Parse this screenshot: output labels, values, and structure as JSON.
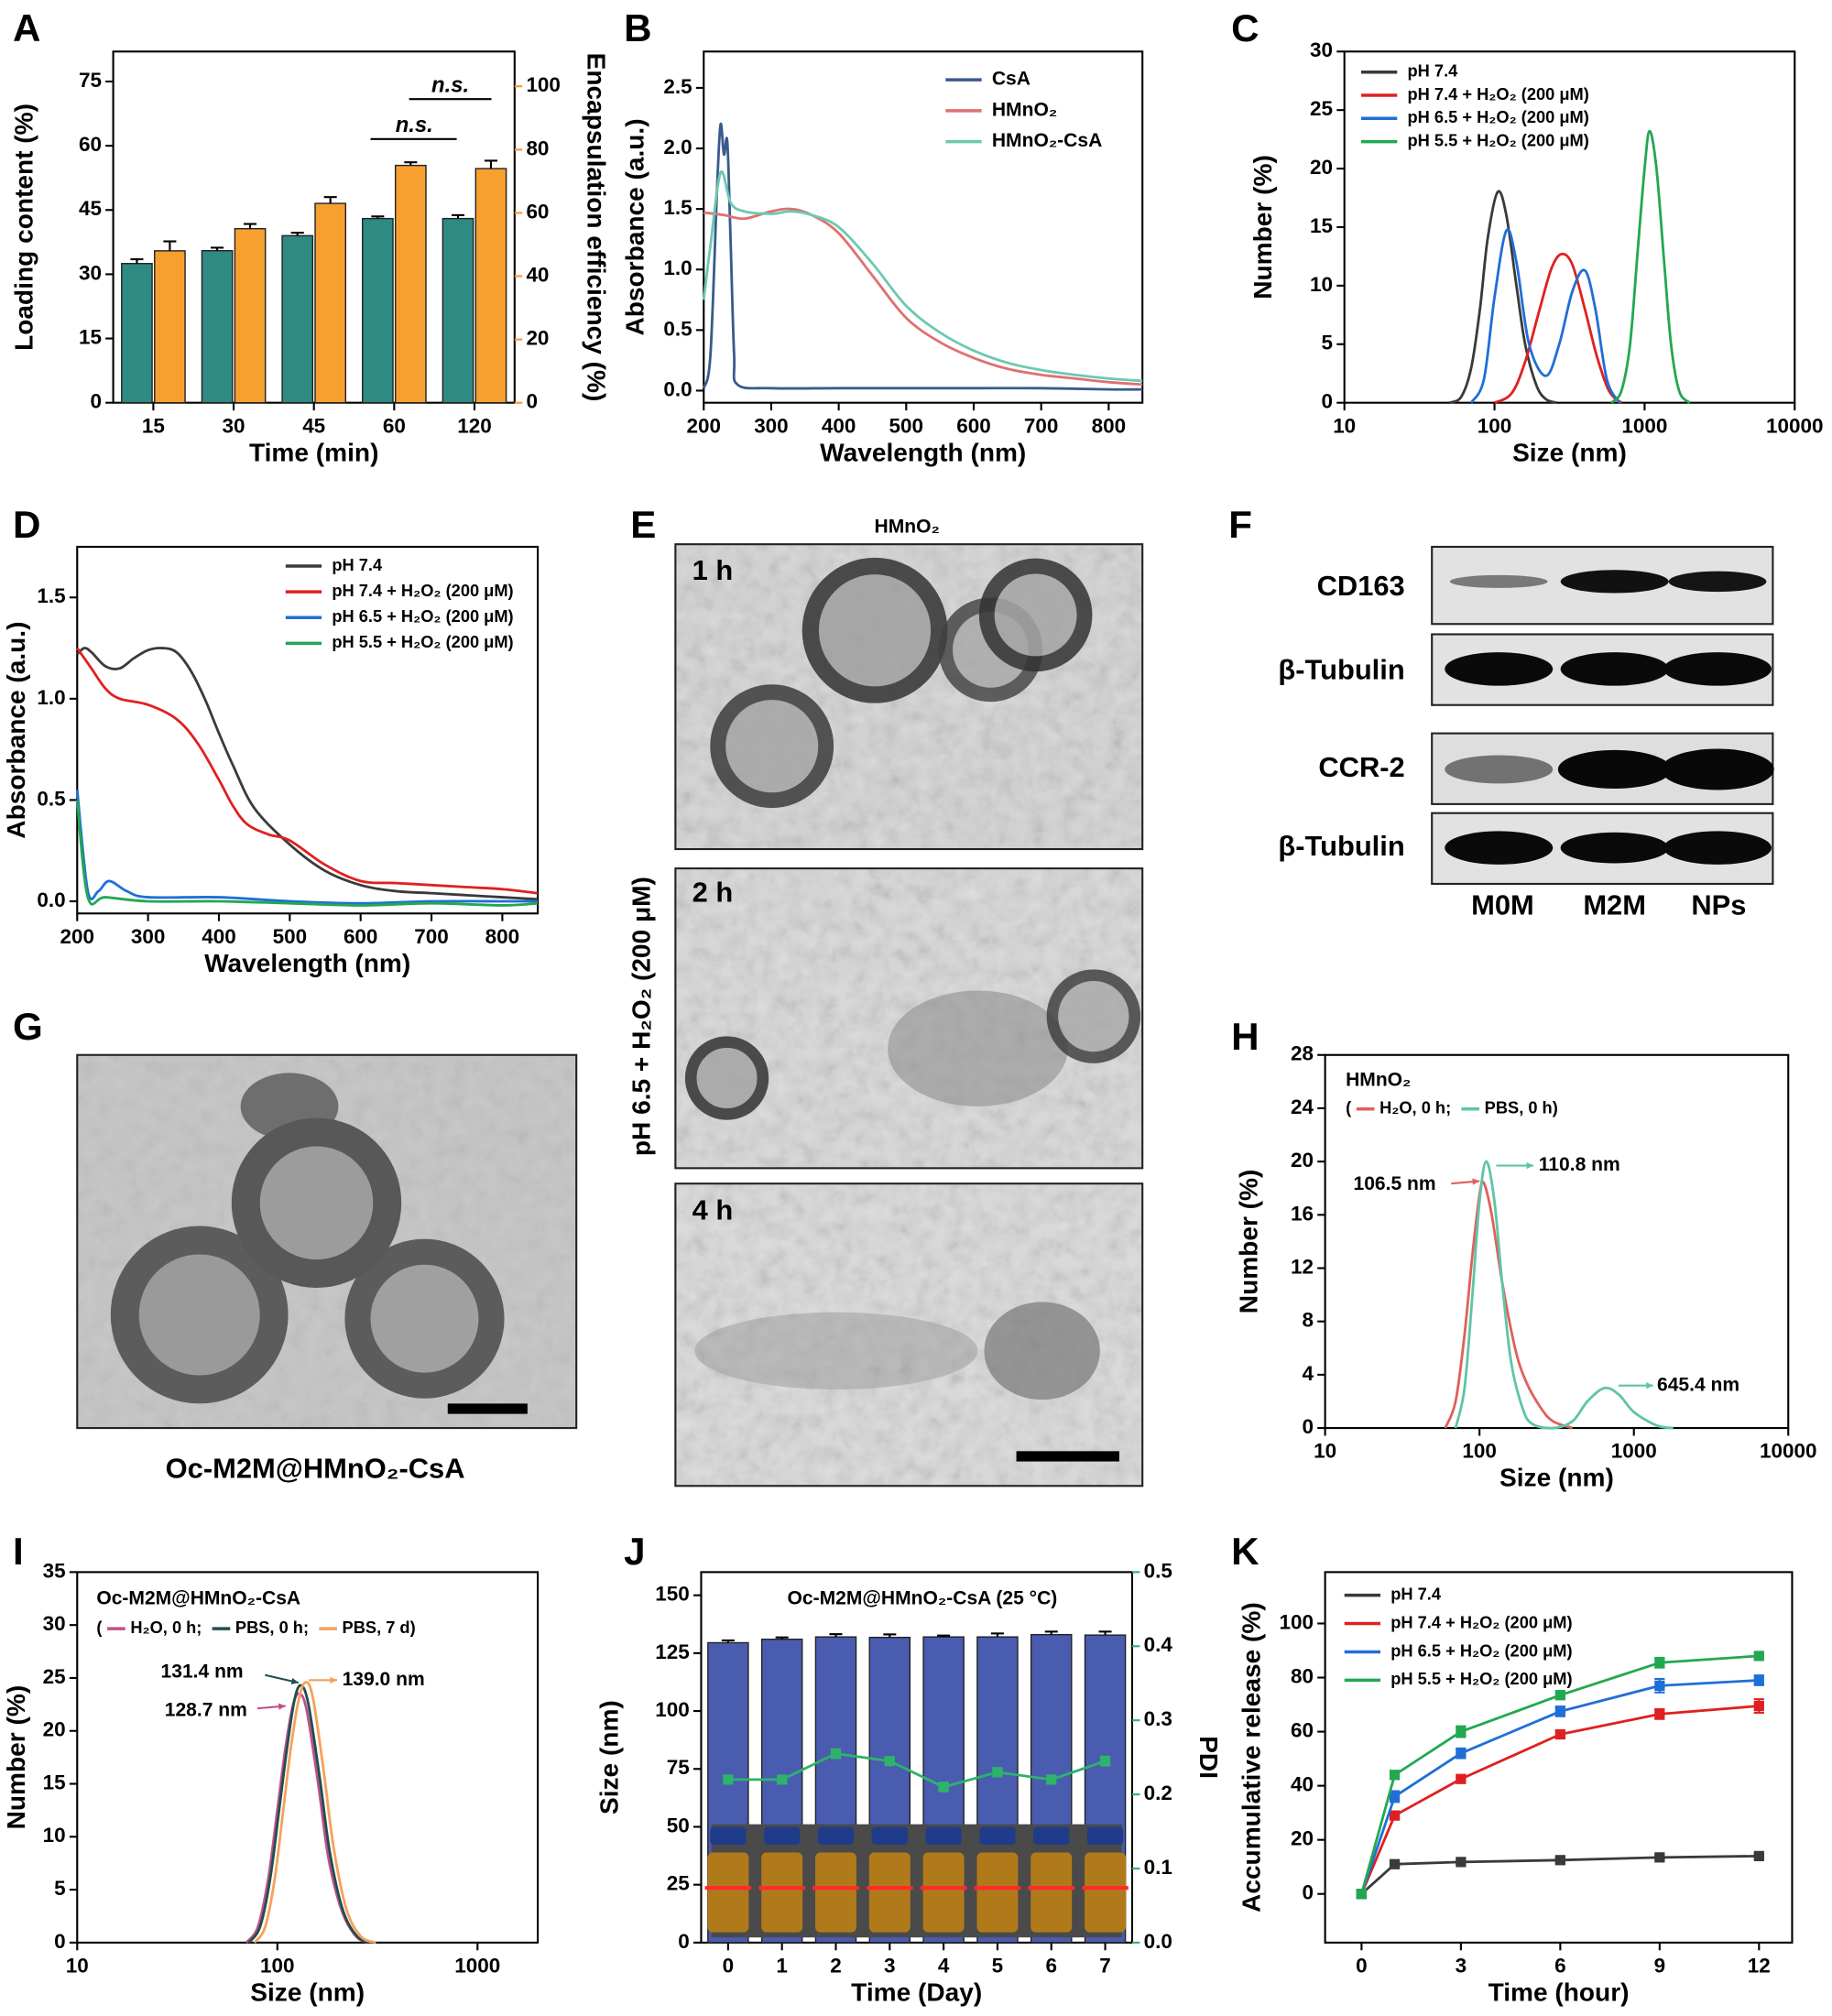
{
  "chart_data": [
    {
      "label": "A",
      "type": "bar",
      "categories": [
        "15",
        "30",
        "45",
        "60",
        "120"
      ],
      "xlabel": "Time (min)",
      "ylabel": "Loading content (%)",
      "y2label": "Encapsulation efficiency (%)",
      "ylabel_color": "#2e9a92",
      "y2label_color": "#f39a2b",
      "ylim": [
        0,
        82
      ],
      "yticks": [
        0,
        15,
        30,
        45,
        60,
        75
      ],
      "y2lim": [
        0,
        111
      ],
      "y2ticks": [
        0,
        20,
        40,
        60,
        80,
        100
      ],
      "series": [
        {
          "color": "#2f8a83",
          "values": [
            32.5,
            35.5,
            39,
            43,
            43
          ],
          "errors": [
            1,
            0.7,
            0.7,
            0.5,
            0.8
          ]
        },
        {
          "color": "#f7a030",
          "axis": "y2",
          "values": [
            48,
            55,
            63,
            75,
            74
          ],
          "errors": [
            3,
            1.5,
            2,
            1,
            2.5
          ]
        }
      ],
      "annotations": [
        {
          "text": "n.s.",
          "color": "#000"
        },
        {
          "text": "n.s.",
          "color": "#000"
        }
      ]
    },
    {
      "label": "B",
      "type": "line",
      "xlabel": "Wavelength (nm)",
      "ylabel": "Absorbance (a.u.)",
      "xlim": [
        200,
        850
      ],
      "xticks": [
        200,
        300,
        400,
        500,
        600,
        700,
        800
      ],
      "ylim": [
        -0.1,
        2.8
      ],
      "yticks": [
        {
          "value": 0,
          "label": "0.0"
        },
        0.5,
        {
          "value": 1,
          "label": "1.0"
        },
        1.5,
        {
          "value": 2,
          "label": "2.0"
        },
        2.5
      ],
      "legend": "upper right",
      "series": [
        {
          "name": "CsA",
          "color": "#3a5a8c",
          "x": [
            200,
            210,
            220,
            225,
            230,
            235,
            240,
            245,
            250,
            300,
            400,
            500,
            600,
            700,
            800,
            850
          ],
          "values": [
            0.02,
            0.3,
            1.7,
            2.2,
            1.95,
            2.05,
            1.2,
            0.3,
            0.05,
            0.02,
            0.02,
            0.02,
            0.02,
            0.02,
            0.01,
            0.01
          ]
        },
        {
          "name": "HMnO₂",
          "color": "#e07070",
          "x": [
            200,
            230,
            260,
            300,
            330,
            360,
            400,
            450,
            500,
            550,
            600,
            650,
            700,
            750,
            800,
            850
          ],
          "values": [
            1.47,
            1.45,
            1.42,
            1.48,
            1.5,
            1.45,
            1.3,
            0.95,
            0.6,
            0.4,
            0.27,
            0.18,
            0.13,
            0.1,
            0.07,
            0.05
          ]
        },
        {
          "name": "HMnO₂-CsA",
          "color": "#6cc9b0",
          "x": [
            200,
            210,
            225,
            240,
            260,
            300,
            330,
            360,
            400,
            450,
            500,
            550,
            600,
            650,
            700,
            750,
            800,
            850
          ],
          "values": [
            0.75,
            1.2,
            1.8,
            1.55,
            1.48,
            1.46,
            1.48,
            1.45,
            1.35,
            1.05,
            0.7,
            0.48,
            0.33,
            0.23,
            0.17,
            0.13,
            0.1,
            0.08
          ]
        }
      ]
    },
    {
      "label": "C",
      "type": "line",
      "xlabel": "Size (nm)",
      "ylabel": "Number (%)",
      "xlog": true,
      "xlim": [
        10,
        10000
      ],
      "xticks": [
        10,
        100,
        1000,
        10000
      ],
      "ylim": [
        0,
        30
      ],
      "yticks": [
        0,
        5,
        10,
        15,
        20,
        25,
        30
      ],
      "legend": "upper left",
      "series": [
        {
          "name": "pH 7.4",
          "color": "#3a3a3a",
          "x": [
            50,
            60,
            70,
            80,
            90,
            105,
            120,
            140,
            160,
            190,
            220,
            260
          ],
          "values": [
            0,
            0.5,
            3,
            8,
            14,
            18,
            16,
            10,
            5,
            1.5,
            0.3,
            0
          ]
        },
        {
          "name": "pH 7.4 + H₂O₂ (200 μM)",
          "color": "#e02020",
          "x": [
            100,
            130,
            160,
            200,
            240,
            280,
            330,
            400,
            480,
            580,
            700
          ],
          "values": [
            0,
            0.8,
            3.5,
            8,
            11.5,
            12.7,
            11.8,
            8,
            4,
            1,
            0
          ]
        },
        {
          "name": "pH 6.5 + H₂O₂ (200 μM)",
          "color": "#1f6fd6",
          "x": [
            70,
            85,
            100,
            120,
            140,
            170,
            220,
            270,
            330,
            400,
            470,
            560,
            680
          ],
          "values": [
            0,
            2,
            9,
            14.7,
            12,
            5,
            2.3,
            5,
            9.5,
            11.3,
            8,
            2,
            0
          ]
        },
        {
          "name": "pH 5.5 + H₂O₂ (200 μM)",
          "color": "#22a850",
          "x": [
            600,
            700,
            800,
            900,
            1000,
            1080,
            1200,
            1350,
            1500,
            1700,
            2000
          ],
          "values": [
            0,
            1,
            5,
            13,
            20,
            23.2,
            20,
            12,
            5,
            1,
            0
          ]
        }
      ]
    },
    {
      "label": "D",
      "type": "line",
      "xlabel": "Wavelength (nm)",
      "ylabel": "Absorbance (a.u.)",
      "xlim": [
        200,
        850
      ],
      "xticks": [
        200,
        300,
        400,
        500,
        600,
        700,
        800
      ],
      "ylim": [
        -0.06,
        1.75
      ],
      "yticks": [
        {
          "value": 0,
          "label": "0.0"
        },
        0.5,
        {
          "value": 1,
          "label": "1.0"
        },
        1.5
      ],
      "legend": "upper left",
      "series": [
        {
          "name": "pH 7.4",
          "color": "#3a3a3a",
          "x": [
            200,
            210,
            220,
            240,
            260,
            280,
            300,
            320,
            340,
            360,
            380,
            400,
            420,
            450,
            500,
            550,
            600,
            650,
            700,
            750,
            800,
            850
          ],
          "values": [
            1.22,
            1.25,
            1.23,
            1.16,
            1.15,
            1.2,
            1.24,
            1.25,
            1.23,
            1.14,
            1.0,
            0.83,
            0.67,
            0.46,
            0.28,
            0.15,
            0.08,
            0.05,
            0.04,
            0.03,
            0.02,
            0.01
          ]
        },
        {
          "name": "pH 7.4 + H₂O₂ (200 μM)",
          "color": "#e02020",
          "x": [
            200,
            220,
            240,
            260,
            300,
            340,
            370,
            400,
            420,
            440,
            470,
            500,
            550,
            600,
            650,
            700,
            750,
            800,
            850
          ],
          "values": [
            1.25,
            1.15,
            1.05,
            1.0,
            0.97,
            0.9,
            0.78,
            0.6,
            0.47,
            0.38,
            0.33,
            0.3,
            0.18,
            0.1,
            0.09,
            0.08,
            0.07,
            0.06,
            0.04
          ]
        },
        {
          "name": "pH 6.5 + H₂O₂ (200 μM)",
          "color": "#1f6fd6",
          "x": [
            200,
            215,
            230,
            245,
            270,
            300,
            400,
            500,
            600,
            700,
            800,
            850
          ],
          "values": [
            0.55,
            0.05,
            0.05,
            0.1,
            0.05,
            0.02,
            0.02,
            0,
            -0.01,
            0,
            0,
            0
          ]
        },
        {
          "name": "pH 5.5 + H₂O₂ (200 μM)",
          "color": "#22a850",
          "x": [
            200,
            215,
            240,
            300,
            400,
            500,
            600,
            700,
            800,
            850
          ],
          "values": [
            0.5,
            0.02,
            0.02,
            0,
            0,
            -0.01,
            -0.02,
            -0.01,
            -0.02,
            -0.01
          ]
        }
      ]
    },
    {
      "label": "H",
      "type": "line",
      "title": "HMnO₂",
      "xlabel": "Size (nm)",
      "ylabel": "Number (%)",
      "xlog": true,
      "xlim": [
        10,
        10000
      ],
      "xticks": [
        10,
        100,
        1000,
        10000
      ],
      "ylim": [
        0,
        28
      ],
      "yticks": [
        0,
        4,
        8,
        12,
        16,
        20,
        24,
        28
      ],
      "legend": "inline",
      "legend_prefix": "(",
      "series": [
        {
          "name": "H₂O, 0 h;",
          "color": "#e0605a",
          "x": [
            60,
            70,
            80,
            90,
            100,
            106.5,
            120,
            140,
            170,
            200,
            250,
            300,
            400
          ],
          "values": [
            0,
            2,
            7,
            13,
            17.5,
            18.4,
            16,
            11,
            6,
            3.5,
            1.5,
            0.5,
            0
          ]
        },
        {
          "name": "PBS, 0 h)",
          "color": "#5fc4a8",
          "x": [
            70,
            80,
            90,
            100,
            110.8,
            125,
            140,
            160,
            190,
            220,
            300,
            400,
            500,
            645.4,
            800,
            1000,
            1400,
            1800
          ],
          "values": [
            0,
            3,
            10,
            17,
            20,
            17,
            11,
            5,
            1.5,
            0.3,
            0,
            0.5,
            2,
            3,
            2.5,
            1.2,
            0.2,
            0
          ]
        }
      ],
      "annotations": [
        {
          "text": "106.5 nm",
          "color": "#e0605a"
        },
        {
          "text": "110.8 nm",
          "color": "#5fc4a8"
        },
        {
          "text": "645.4 nm",
          "color": "#5fc4a8"
        }
      ]
    },
    {
      "label": "I",
      "type": "line",
      "title": "Oc-M2M@HMnO₂-CsA",
      "xlabel": "Size (nm)",
      "ylabel": "Number (%)",
      "xlog": true,
      "xlim": [
        10,
        2000
      ],
      "xticks": [
        10,
        100,
        1000
      ],
      "ylim": [
        0,
        35
      ],
      "yticks": [
        0,
        5,
        10,
        15,
        20,
        25,
        30,
        35
      ],
      "legend": "inline",
      "legend_prefix": "(",
      "series": [
        {
          "name": "H₂O, 0 h;",
          "color": "#c0508a",
          "x": [
            70,
            80,
            90,
            100,
            110,
            120,
            128.7,
            140,
            160,
            180,
            210,
            250,
            300
          ],
          "values": [
            0,
            1.5,
            6,
            12.5,
            18.5,
            22.5,
            23.5,
            22,
            15,
            8,
            3,
            0.5,
            0
          ]
        },
        {
          "name": "PBS, 0 h;",
          "color": "#1f4f4f",
          "x": [
            72,
            82,
            92,
            102,
            112,
            122,
            131.4,
            143,
            163,
            183,
            213,
            253,
            303
          ],
          "values": [
            0,
            1.5,
            6,
            12.5,
            18.5,
            23,
            24.3,
            22.5,
            15.5,
            8.5,
            3,
            0.5,
            0
          ]
        },
        {
          "name": "PBS, 7 d)",
          "color": "#f5a25a",
          "x": [
            77,
            87,
            97,
            107,
            117,
            128,
            139,
            151,
            171,
            191,
            221,
            261,
            311
          ],
          "values": [
            0,
            1.5,
            6,
            12.5,
            18.5,
            23,
            24.6,
            23,
            16,
            9,
            3.2,
            0.6,
            0
          ]
        }
      ],
      "annotations": [
        {
          "text": "131.4 nm",
          "color": "#1f4f4f"
        },
        {
          "text": "139.0 nm",
          "color": "#f5a25a"
        },
        {
          "text": "128.7 nm",
          "color": "#c0508a"
        }
      ]
    },
    {
      "label": "J",
      "type": "bar",
      "title": "Oc-M2M@HMnO₂-CsA (25 °C)",
      "categories": [
        "0",
        "1",
        "2",
        "3",
        "4",
        "5",
        "6",
        "7"
      ],
      "xlabel": "Time (Day)",
      "ylabel": "Size (nm)",
      "y2label": "PDI",
      "ylabel_color": "#4a5cb0",
      "y2label_color": "#2db36a",
      "ylim": [
        0,
        160
      ],
      "yticks": [
        0,
        25,
        50,
        75,
        100,
        125,
        150
      ],
      "y2lim": [
        0,
        0.5
      ],
      "y2ticks": [
        {
          "value": 0,
          "label": "0.0"
        },
        0.1,
        0.2,
        0.3,
        0.4,
        0.5
      ],
      "series": [
        {
          "color": "#4a5cb0",
          "values": [
            129.5,
            131,
            132,
            131.8,
            132,
            132,
            133,
            132.8
          ],
          "errors": [
            1,
            0.8,
            1.2,
            1.3,
            0.6,
            1.5,
            1.3,
            1.5
          ]
        },
        {
          "color": "#2db36a",
          "axis": "y2",
          "mark": "line",
          "values": [
            0.22,
            0.22,
            0.255,
            0.245,
            0.21,
            0.23,
            0.22,
            0.245
          ],
          "errors": [
            0.005,
            0.005,
            0.006,
            0.005,
            0.006,
            0.005,
            0.005,
            0.006
          ]
        }
      ]
    },
    {
      "label": "K",
      "type": "line",
      "markers": true,
      "xlabel": "Time (hour)",
      "ylabel": "Accumulative release (%)",
      "xlim": [
        -1.1,
        13
      ],
      "xticks": [
        0,
        3,
        6,
        9,
        12
      ],
      "ylim": [
        -18,
        119
      ],
      "yticks": [
        0,
        20,
        40,
        60,
        80,
        100
      ],
      "legend": "upper left",
      "x": [
        0,
        1,
        3,
        6,
        9,
        12
      ],
      "series": [
        {
          "name": "pH 7.4",
          "color": "#3a3a3a",
          "values": [
            0,
            11,
            11.8,
            12.5,
            13.5,
            14
          ],
          "errors": [
            1,
            0.8,
            0.6,
            0.8,
            0.5,
            0.7
          ]
        },
        {
          "name": "pH 7.4 + H₂O₂ (200 μM)",
          "color": "#e02020",
          "values": [
            0,
            29,
            42.5,
            59,
            66.5,
            69.5
          ],
          "errors": [
            1,
            1.5,
            0.8,
            1.2,
            1.8,
            2.5
          ]
        },
        {
          "name": "pH 6.5 + H₂O₂ (200 μM)",
          "color": "#1f6fd6",
          "values": [
            0,
            36,
            52,
            67.5,
            77,
            79
          ],
          "errors": [
            1,
            2,
            1.8,
            1.8,
            2.5,
            1.8
          ]
        },
        {
          "name": "pH 5.5 + H₂O₂ (200 μM)",
          "color": "#22a850",
          "values": [
            0,
            44,
            60,
            73.5,
            85.5,
            88
          ],
          "errors": [
            1,
            1.5,
            2,
            1.5,
            1.8,
            1
          ]
        }
      ]
    }
  ],
  "figures": {
    "E": {
      "label": "E",
      "title": "HMnO₂",
      "frames": [
        "1 h",
        "2 h",
        "4 h"
      ],
      "side_label": "pH 6.5 + H₂O₂ (200 μM)"
    },
    "F": {
      "label": "F",
      "rows": [
        "CD163",
        "β-Tubulin",
        "CCR-2",
        "β-Tubulin"
      ],
      "columns": [
        "M0M",
        "M2M",
        "NPs"
      ]
    },
    "G": {
      "label": "G",
      "caption": "Oc-M2M@HMnO₂-CsA"
    }
  }
}
